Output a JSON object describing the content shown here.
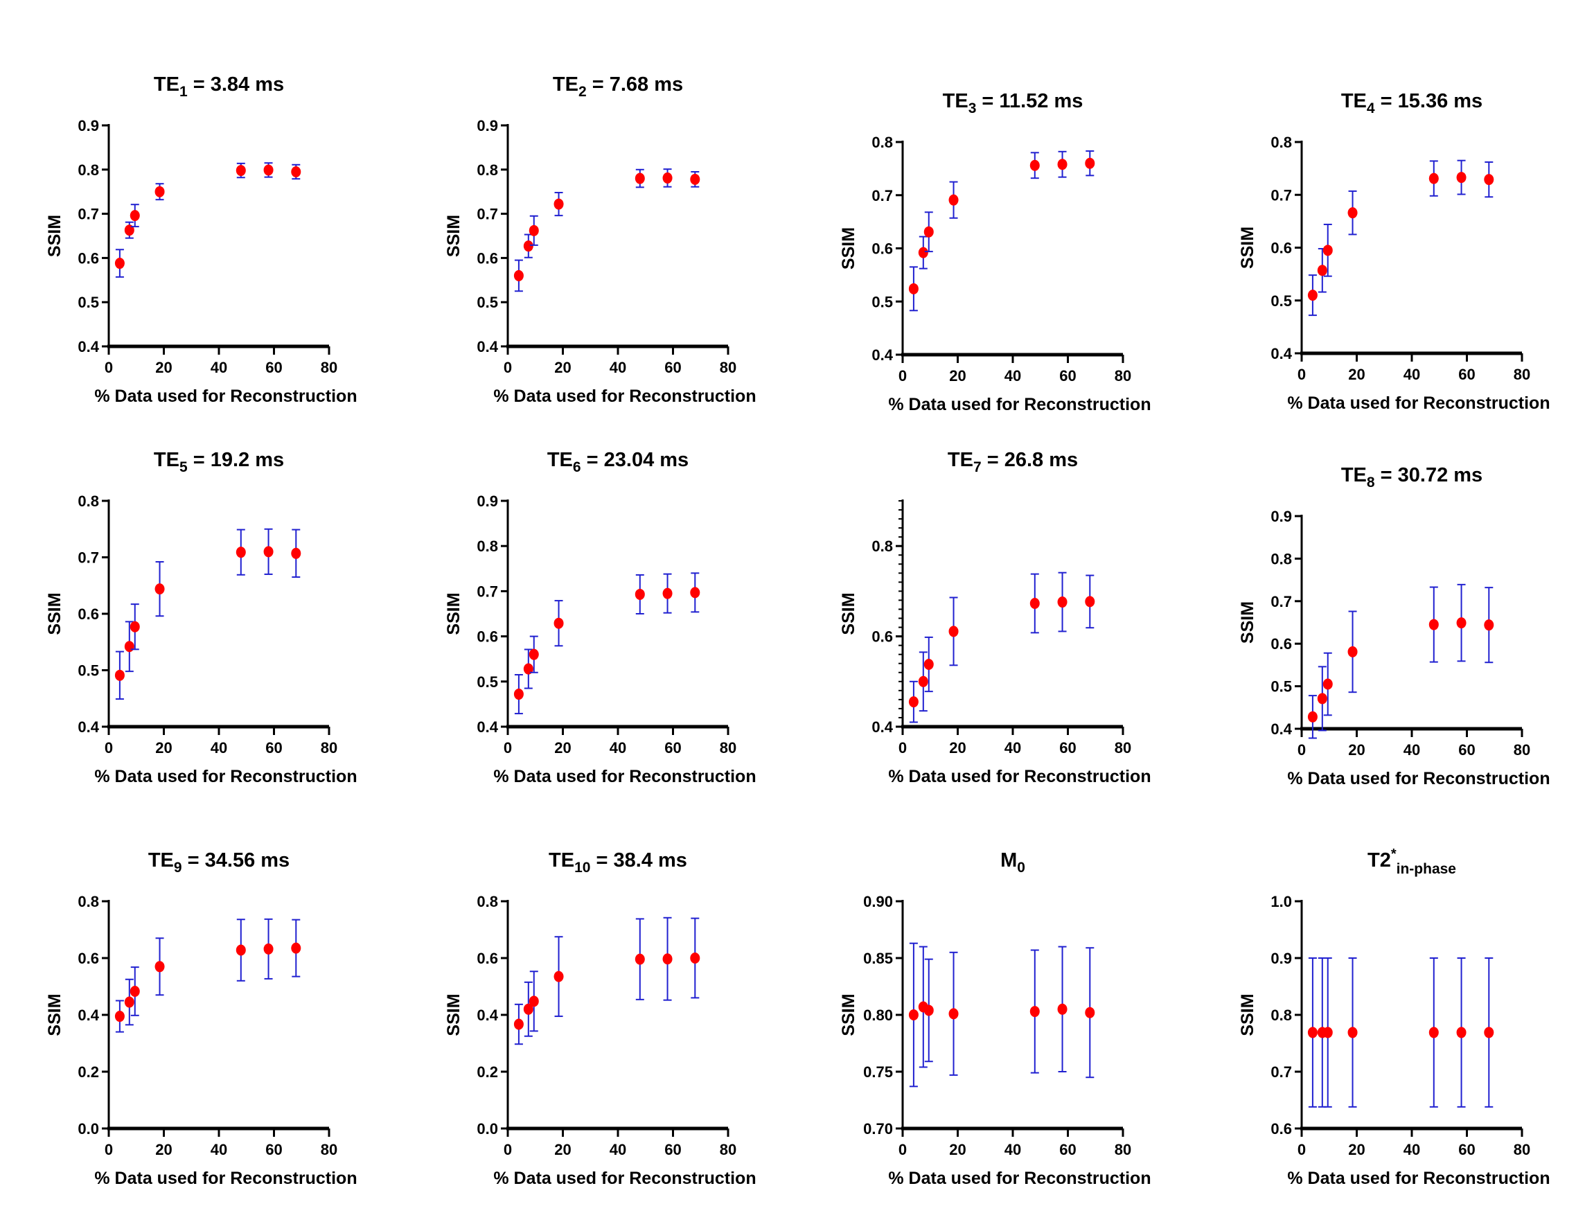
{
  "colors": {
    "marker": "#ff0000",
    "error_bar": "#2020d0",
    "axis": "#000000"
  },
  "chart_data": [
    {
      "type": "scatter",
      "title": {
        "main": "TE",
        "sub": "1",
        "rest": " = 3.84 ms"
      },
      "xlabel": "% Data used for Reconstruction",
      "ylabel": "SSIM",
      "xlim": [
        0,
        80
      ],
      "xticks": [
        "0",
        "20",
        "40",
        "60",
        "80"
      ],
      "ylim": [
        0.4,
        0.9
      ],
      "yticks": [
        "0.4",
        "0.5",
        "0.6",
        "0.7",
        "0.8",
        "0.9"
      ],
      "x": [
        4,
        7.5,
        9.5,
        18.5,
        48,
        58,
        68
      ],
      "y": [
        0.588,
        0.663,
        0.696,
        0.75,
        0.798,
        0.799,
        0.795
      ],
      "yerr": [
        0.031,
        0.018,
        0.025,
        0.018,
        0.016,
        0.016,
        0.016
      ]
    },
    {
      "type": "scatter",
      "title": {
        "main": "TE",
        "sub": "2",
        "rest": " = 7.68 ms"
      },
      "xlabel": "% Data used for Reconstruction",
      "ylabel": "SSIM",
      "xlim": [
        0,
        80
      ],
      "xticks": [
        "0",
        "20",
        "40",
        "60",
        "80"
      ],
      "ylim": [
        0.4,
        0.9
      ],
      "yticks": [
        "0.4",
        "0.5",
        "0.6",
        "0.7",
        "0.8",
        "0.9"
      ],
      "x": [
        4,
        7.5,
        9.5,
        18.5,
        48,
        58,
        68
      ],
      "y": [
        0.56,
        0.627,
        0.662,
        0.722,
        0.78,
        0.781,
        0.778
      ],
      "yerr": [
        0.035,
        0.026,
        0.033,
        0.026,
        0.02,
        0.02,
        0.017
      ]
    },
    {
      "type": "scatter",
      "title": {
        "main": "TE",
        "sub": "3",
        "rest": " = 11.52 ms"
      },
      "xlabel": "% Data used for Reconstruction",
      "ylabel": "SSIM",
      "xlim": [
        0,
        80
      ],
      "xticks": [
        "0",
        "20",
        "40",
        "60",
        "80"
      ],
      "ylim": [
        0.4,
        0.8
      ],
      "yticks": [
        "0.4",
        "0.5",
        "0.6",
        "0.7",
        "0.8"
      ],
      "x": [
        4,
        7.5,
        9.5,
        18.5,
        48,
        58,
        68
      ],
      "y": [
        0.524,
        0.592,
        0.631,
        0.691,
        0.756,
        0.758,
        0.76
      ],
      "yerr": [
        0.041,
        0.03,
        0.037,
        0.034,
        0.024,
        0.024,
        0.023
      ]
    },
    {
      "type": "scatter",
      "title": {
        "main": "TE",
        "sub": "4",
        "rest": " = 15.36 ms"
      },
      "xlabel": "% Data used for Reconstruction",
      "ylabel": "SSIM",
      "xlim": [
        0,
        80
      ],
      "xticks": [
        "0",
        "20",
        "40",
        "60",
        "80"
      ],
      "ylim": [
        0.4,
        0.8
      ],
      "yticks": [
        "0.4",
        "0.5",
        "0.6",
        "0.7",
        "0.8"
      ],
      "x": [
        4,
        7.5,
        9.5,
        18.5,
        48,
        58,
        68
      ],
      "y": [
        0.51,
        0.557,
        0.595,
        0.666,
        0.731,
        0.733,
        0.729
      ],
      "yerr": [
        0.038,
        0.041,
        0.049,
        0.041,
        0.033,
        0.032,
        0.033
      ]
    },
    {
      "type": "scatter",
      "title": {
        "main": "TE",
        "sub": "5",
        "rest": " = 19.2 ms"
      },
      "xlabel": "% Data used for Reconstruction",
      "ylabel": "SSIM",
      "xlim": [
        0,
        80
      ],
      "xticks": [
        "0",
        "20",
        "40",
        "60",
        "80"
      ],
      "ylim": [
        0.4,
        0.8
      ],
      "yticks": [
        "0.4",
        "0.5",
        "0.6",
        "0.7",
        "0.8"
      ],
      "x": [
        4,
        7.5,
        9.5,
        18.5,
        48,
        58,
        68
      ],
      "y": [
        0.491,
        0.542,
        0.577,
        0.644,
        0.709,
        0.71,
        0.707
      ],
      "yerr": [
        0.042,
        0.044,
        0.04,
        0.048,
        0.04,
        0.04,
        0.042
      ]
    },
    {
      "type": "scatter",
      "title": {
        "main": "TE",
        "sub": "6",
        "rest": " = 23.04 ms"
      },
      "xlabel": "% Data used for Reconstruction",
      "ylabel": "SSIM",
      "xlim": [
        0,
        80
      ],
      "xticks": [
        "0",
        "20",
        "40",
        "60",
        "80"
      ],
      "ylim": [
        0.4,
        0.9
      ],
      "yticks": [
        "0.4",
        "0.5",
        "0.6",
        "0.7",
        "0.8",
        "0.9"
      ],
      "x": [
        4,
        7.5,
        9.5,
        18.5,
        48,
        58,
        68
      ],
      "y": [
        0.472,
        0.528,
        0.56,
        0.629,
        0.693,
        0.695,
        0.697
      ],
      "yerr": [
        0.043,
        0.043,
        0.04,
        0.05,
        0.043,
        0.043,
        0.043
      ]
    },
    {
      "type": "scatter",
      "title": {
        "main": "TE",
        "sub": "7",
        "rest": " = 26.8 ms"
      },
      "xlabel": "% Data used for Reconstruction",
      "ylabel": "SSIM",
      "xlim": [
        0,
        80
      ],
      "xticks": [
        "0",
        "20",
        "40",
        "60",
        "80"
      ],
      "ylim": [
        0.4,
        0.9
      ],
      "yticks": [
        "0.4",
        "0.6",
        "0.8"
      ],
      "yminor_step": 0.02,
      "x": [
        4,
        7.5,
        9.5,
        18.5,
        48,
        58,
        68
      ],
      "y": [
        0.455,
        0.5,
        0.538,
        0.611,
        0.673,
        0.676,
        0.677
      ],
      "yerr": [
        0.045,
        0.065,
        0.06,
        0.075,
        0.065,
        0.065,
        0.058
      ]
    },
    {
      "type": "scatter",
      "title": {
        "main": "TE",
        "sub": "8",
        "rest": " = 30.72 ms"
      },
      "xlabel": "% Data used for Reconstruction",
      "ylabel": "SSIM",
      "xlim": [
        0,
        80
      ],
      "xticks": [
        "0",
        "20",
        "40",
        "60",
        "80"
      ],
      "ylim": [
        0.4,
        0.9
      ],
      "yticks": [
        "0.4",
        "0.5",
        "0.6",
        "0.7",
        "0.8",
        "0.9"
      ],
      "x": [
        4,
        7.5,
        9.5,
        18.5,
        48,
        58,
        68
      ],
      "y": [
        0.428,
        0.471,
        0.505,
        0.581,
        0.645,
        0.649,
        0.644
      ],
      "yerr": [
        0.05,
        0.075,
        0.073,
        0.095,
        0.088,
        0.09,
        0.088
      ]
    },
    {
      "type": "scatter",
      "title": {
        "main": "TE",
        "sub": "9",
        "rest": " = 34.56 ms"
      },
      "xlabel": "% Data used for Reconstruction",
      "ylabel": "SSIM",
      "xlim": [
        0,
        80
      ],
      "xticks": [
        "0",
        "20",
        "40",
        "60",
        "80"
      ],
      "ylim": [
        0.0,
        0.8
      ],
      "yticks": [
        "0.0",
        "0.2",
        "0.4",
        "0.6",
        "0.8"
      ],
      "x": [
        4,
        7.5,
        9.5,
        18.5,
        48,
        58,
        68
      ],
      "y": [
        0.395,
        0.445,
        0.483,
        0.57,
        0.628,
        0.632,
        0.635
      ],
      "yerr": [
        0.055,
        0.08,
        0.085,
        0.1,
        0.108,
        0.105,
        0.1
      ]
    },
    {
      "type": "scatter",
      "title": {
        "main": "TE",
        "sub": "10",
        "rest": " = 38.4 ms"
      },
      "xlabel": "% Data used for Reconstruction",
      "ylabel": "SSIM",
      "xlim": [
        0,
        80
      ],
      "xticks": [
        "0",
        "20",
        "40",
        "60",
        "80"
      ],
      "ylim": [
        0.0,
        0.8
      ],
      "yticks": [
        "0.0",
        "0.2",
        "0.4",
        "0.6",
        "0.8"
      ],
      "x": [
        4,
        7.5,
        9.5,
        18.5,
        48,
        58,
        68
      ],
      "y": [
        0.367,
        0.42,
        0.448,
        0.535,
        0.596,
        0.597,
        0.6
      ],
      "yerr": [
        0.07,
        0.095,
        0.105,
        0.14,
        0.142,
        0.145,
        0.14
      ]
    },
    {
      "type": "scatter",
      "title": {
        "main": "M",
        "sub": "0",
        "rest": ""
      },
      "xlabel": "% Data used for Reconstruction",
      "ylabel": "SSIM",
      "xlim": [
        0,
        80
      ],
      "xticks": [
        "0",
        "20",
        "40",
        "60",
        "80"
      ],
      "ylim": [
        0.7,
        0.9
      ],
      "yticks": [
        "0.70",
        "0.75",
        "0.80",
        "0.85",
        "0.90"
      ],
      "x": [
        4,
        7.5,
        9.5,
        18.5,
        48,
        58,
        68
      ],
      "y": [
        0.8,
        0.807,
        0.804,
        0.801,
        0.803,
        0.805,
        0.802
      ],
      "yerr": [
        0.063,
        0.053,
        0.045,
        0.054,
        0.054,
        0.055,
        0.057
      ]
    },
    {
      "type": "scatter",
      "title": {
        "main": "T2",
        "sup": "*",
        "sub": "in-phase",
        "rest": ""
      },
      "xlabel": "% Data used for Reconstruction",
      "ylabel": "SSIM",
      "xlim": [
        0,
        80
      ],
      "xticks": [
        "0",
        "20",
        "40",
        "60",
        "80"
      ],
      "ylim": [
        0.6,
        1.0
      ],
      "yticks": [
        "0.6",
        "0.7",
        "0.8",
        "0.9",
        "1.0"
      ],
      "x": [
        4,
        7.5,
        9.5,
        18.5,
        48,
        58,
        68
      ],
      "y": [
        0.769,
        0.769,
        0.769,
        0.769,
        0.769,
        0.769,
        0.769
      ],
      "yerr": [
        0.131,
        0.131,
        0.131,
        0.131,
        0.131,
        0.131,
        0.131
      ]
    }
  ]
}
